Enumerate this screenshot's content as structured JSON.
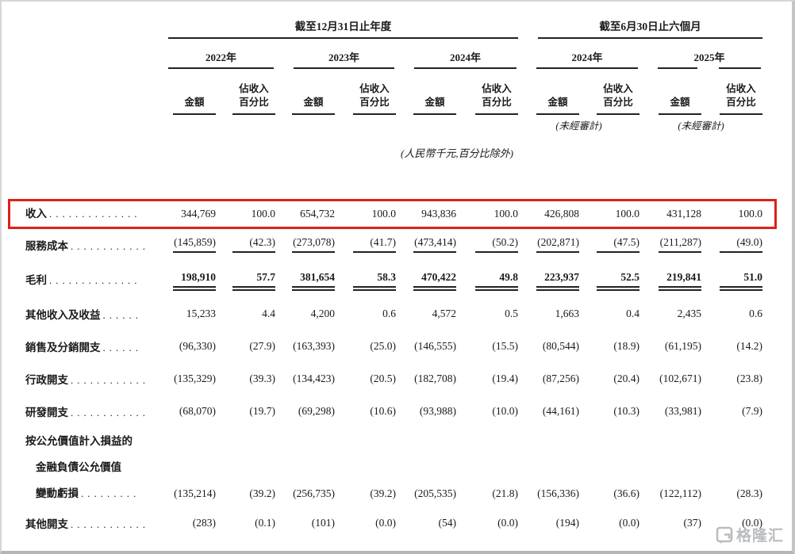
{
  "accent_red": "#dd2118",
  "page": {
    "watermark": "格隆汇"
  },
  "table": {
    "periods": [
      "截至12月31日止年度",
      "截至6月30日止六個月"
    ],
    "years": [
      "2022年",
      "2023年",
      "2024年",
      "2024年",
      "2025年"
    ],
    "col_amount": "金額",
    "col_pct_line1": "佔收入",
    "col_pct_line2": "百分比",
    "unaudited_note": "(未經審計)",
    "units_note": "(人民幣千元,百分比除外)",
    "rows": [
      {
        "label_lines": [
          "收入"
        ],
        "dots": "..............",
        "highlight": true,
        "values": [
          "344,769",
          "100.0",
          "654,732",
          "100.0",
          "943,836",
          "100.0",
          "426,808",
          "100.0",
          "431,128",
          "100.0"
        ]
      },
      {
        "label_lines": [
          "服務成本"
        ],
        "dots": "............",
        "rule": "single",
        "values": [
          "(145,859)",
          "(42.3)",
          "(273,078)",
          "(41.7)",
          "(473,414)",
          "(50.2)",
          "(202,871)",
          "(47.5)",
          "(211,287)",
          "(49.0)"
        ]
      },
      {
        "label_lines": [
          "毛利"
        ],
        "dots": "..............",
        "bold": true,
        "rule": "double",
        "gross": true,
        "values": [
          "198,910",
          "57.7",
          "381,654",
          "58.3",
          "470,422",
          "49.8",
          "223,937",
          "52.5",
          "219,841",
          "51.0"
        ]
      },
      {
        "label_lines": [
          "其他收入及收益"
        ],
        "dots": "......",
        "values": [
          "15,233",
          "4.4",
          "4,200",
          "0.6",
          "4,572",
          "0.5",
          "1,663",
          "0.4",
          "2,435",
          "0.6"
        ]
      },
      {
        "label_lines": [
          "銷售及分銷開支"
        ],
        "dots": "......",
        "values": [
          "(96,330)",
          "(27.9)",
          "(163,393)",
          "(25.0)",
          "(146,555)",
          "(15.5)",
          "(80,544)",
          "(18.9)",
          "(61,195)",
          "(14.2)"
        ]
      },
      {
        "label_lines": [
          "行政開支"
        ],
        "dots": "............",
        "values": [
          "(135,329)",
          "(39.3)",
          "(134,423)",
          "(20.5)",
          "(182,708)",
          "(19.4)",
          "(87,256)",
          "(20.4)",
          "(102,671)",
          "(23.8)"
        ]
      },
      {
        "label_lines": [
          "研發開支"
        ],
        "dots": "............",
        "values": [
          "(68,070)",
          "(19.7)",
          "(69,298)",
          "(10.6)",
          "(93,988)",
          "(10.0)",
          "(44,161)",
          "(10.3)",
          "(33,981)",
          "(7.9)"
        ]
      },
      {
        "label_lines": [
          "按公允價值計入損益的",
          "金融負債公允價值",
          "變動虧損"
        ],
        "dots": ".........",
        "values": [
          "(135,214)",
          "(39.2)",
          "(256,735)",
          "(39.2)",
          "(205,535)",
          "(21.8)",
          "(156,336)",
          "(36.6)",
          "(122,112)",
          "(28.3)"
        ]
      },
      {
        "label_lines": [
          "其他開支"
        ],
        "dots": "............",
        "values": [
          "(283)",
          "(0.1)",
          "(101)",
          "(0.0)",
          "(54)",
          "(0.0)",
          "(194)",
          "(0.0)",
          "(37)",
          "(0.0)"
        ]
      }
    ]
  }
}
